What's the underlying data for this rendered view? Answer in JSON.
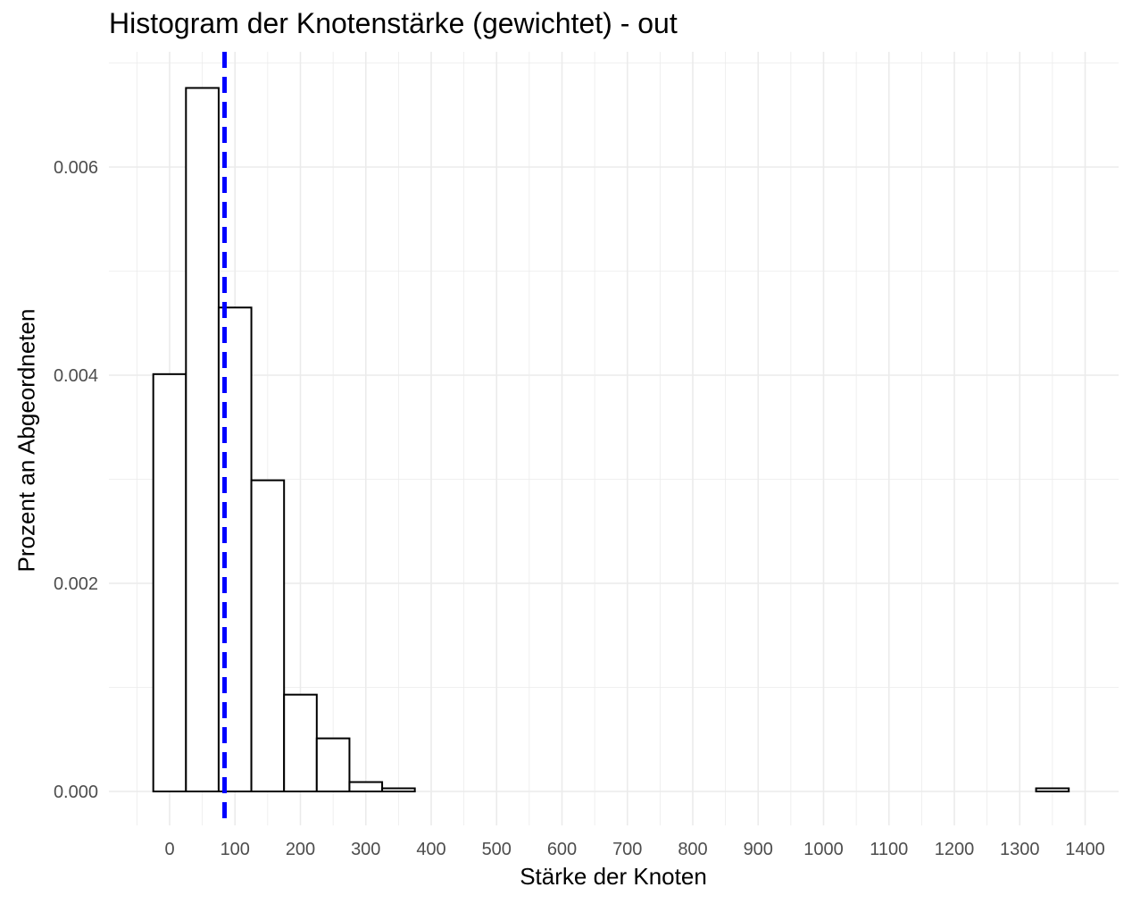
{
  "chart_data": {
    "type": "bar",
    "title": "Histogram der Knotenstärke (gewichtet) - out",
    "xlabel": "Stärke der Knoten",
    "ylabel": "Prozent an Abgeordneten",
    "xlim": [
      -50,
      1400
    ],
    "ylim": [
      -0.00035,
      0.007
    ],
    "x_ticks": [
      0,
      100,
      200,
      300,
      400,
      500,
      600,
      700,
      800,
      900,
      1000,
      1100,
      1200,
      1300,
      1400
    ],
    "y_ticks": [
      0.0,
      0.002,
      0.004,
      0.006
    ],
    "y_tick_labels": [
      "0.000",
      "0.002",
      "0.004",
      "0.006"
    ],
    "grid": true,
    "bin_width": 50,
    "bins": [
      {
        "start": -25,
        "end": 25,
        "value": 0.00401
      },
      {
        "start": 25,
        "end": 75,
        "value": 0.00676
      },
      {
        "start": 75,
        "end": 125,
        "value": 0.00465
      },
      {
        "start": 125,
        "end": 175,
        "value": 0.00299
      },
      {
        "start": 175,
        "end": 225,
        "value": 0.00093
      },
      {
        "start": 225,
        "end": 275,
        "value": 0.00051
      },
      {
        "start": 275,
        "end": 325,
        "value": 9e-05
      },
      {
        "start": 325,
        "end": 375,
        "value": 3e-05
      },
      {
        "start": 375,
        "end": 1325,
        "value": 0.0
      },
      {
        "start": 1325,
        "end": 1375,
        "value": 3e-05
      }
    ],
    "reference_line": {
      "x": 84,
      "style": "dashed",
      "color": "#0000ff"
    },
    "bar_fill": "#ffffff",
    "bar_stroke": "#000000",
    "grid_color": "#ebebeb"
  }
}
